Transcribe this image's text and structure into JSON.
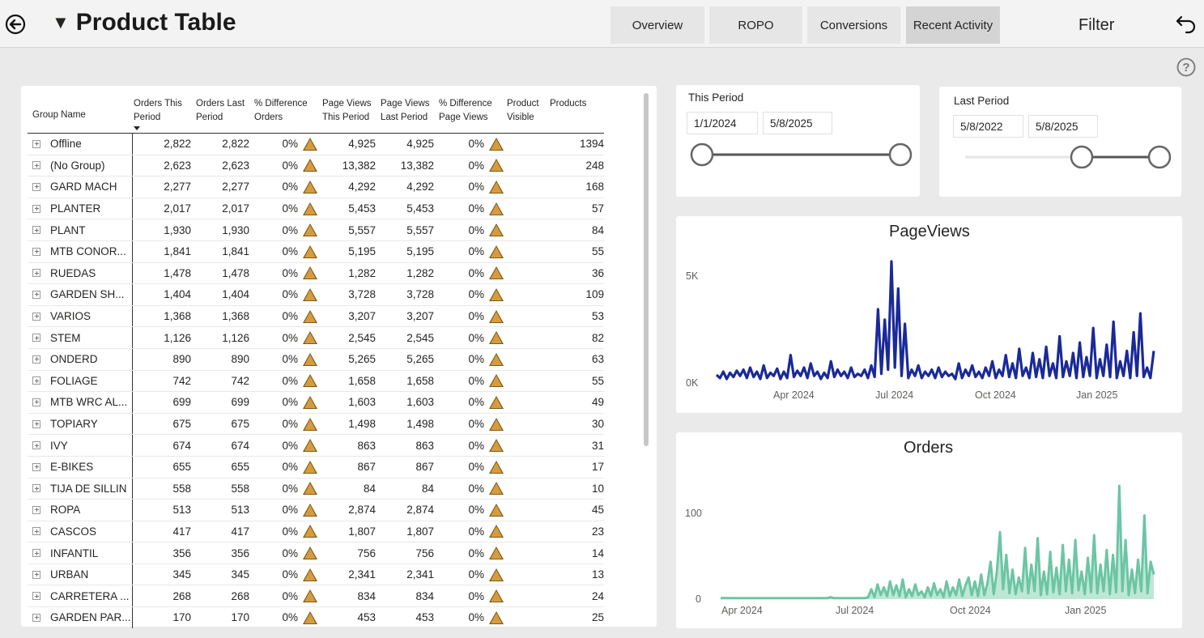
{
  "header": {
    "title": "Product Table",
    "filter_label": "Filter"
  },
  "nav": [
    {
      "label": "Overview",
      "active": false
    },
    {
      "label": "ROPO",
      "active": false
    },
    {
      "label": "Conversions",
      "active": false
    },
    {
      "label": "Recent Activity",
      "active": true
    }
  ],
  "icons": {
    "back": "back-circle-arrow-icon",
    "undo": "undo-icon",
    "help": "question-circle-icon",
    "expand": "plus-box-icon",
    "delta": "warning-triangle-icon"
  },
  "colors": {
    "pageviews_line": "#1a2a99",
    "orders_line": "#6cc5a4",
    "orders_fill": "#bfe7d6",
    "delta_triangle": "#d79b3f"
  },
  "table": {
    "columns": [
      "Group Name",
      "Orders This Period",
      "Orders Last Period",
      "% Difference Orders",
      "Page Views This Period",
      "Page Views Last Period",
      "% Difference Page Views",
      "Product Visible",
      "Products"
    ],
    "rows": [
      [
        "Offline",
        "2,822",
        "2,822",
        "0%",
        "4,925",
        "4,925",
        "0%",
        "1394"
      ],
      [
        "(No Group)",
        "2,623",
        "2,623",
        "0%",
        "13,382",
        "13,382",
        "0%",
        "248"
      ],
      [
        "GARD MACH",
        "2,277",
        "2,277",
        "0%",
        "4,292",
        "4,292",
        "0%",
        "168"
      ],
      [
        "PLANTER",
        "2,017",
        "2,017",
        "0%",
        "5,453",
        "5,453",
        "0%",
        "57"
      ],
      [
        "PLANT",
        "1,930",
        "1,930",
        "0%",
        "5,557",
        "5,557",
        "0%",
        "84"
      ],
      [
        "MTB CONOR...",
        "1,841",
        "1,841",
        "0%",
        "5,195",
        "5,195",
        "0%",
        "55"
      ],
      [
        "RUEDAS",
        "1,478",
        "1,478",
        "0%",
        "1,282",
        "1,282",
        "0%",
        "36"
      ],
      [
        "GARDEN SH...",
        "1,404",
        "1,404",
        "0%",
        "3,728",
        "3,728",
        "0%",
        "109"
      ],
      [
        "VARIOS",
        "1,368",
        "1,368",
        "0%",
        "3,207",
        "3,207",
        "0%",
        "53"
      ],
      [
        "STEM",
        "1,126",
        "1,126",
        "0%",
        "2,545",
        "2,545",
        "0%",
        "82"
      ],
      [
        "ONDERD",
        "890",
        "890",
        "0%",
        "5,265",
        "5,265",
        "0%",
        "63"
      ],
      [
        "FOLIAGE",
        "742",
        "742",
        "0%",
        "1,658",
        "1,658",
        "0%",
        "55"
      ],
      [
        "MTB WRC AL...",
        "699",
        "699",
        "0%",
        "1,603",
        "1,603",
        "0%",
        "49"
      ],
      [
        "TOPIARY",
        "675",
        "675",
        "0%",
        "1,498",
        "1,498",
        "0%",
        "30"
      ],
      [
        "IVY",
        "674",
        "674",
        "0%",
        "863",
        "863",
        "0%",
        "31"
      ],
      [
        "E-BIKES",
        "655",
        "655",
        "0%",
        "867",
        "867",
        "0%",
        "17"
      ],
      [
        "TIJA DE SILLIN",
        "558",
        "558",
        "0%",
        "84",
        "84",
        "0%",
        "10"
      ],
      [
        "ROPA",
        "513",
        "513",
        "0%",
        "2,874",
        "2,874",
        "0%",
        "45"
      ],
      [
        "CASCOS",
        "417",
        "417",
        "0%",
        "1,807",
        "1,807",
        "0%",
        "23"
      ],
      [
        "INFANTIL",
        "356",
        "356",
        "0%",
        "756",
        "756",
        "0%",
        "14"
      ],
      [
        "URBAN",
        "345",
        "345",
        "0%",
        "2,341",
        "2,341",
        "0%",
        "13"
      ],
      [
        "CARRETERA ...",
        "268",
        "268",
        "0%",
        "834",
        "834",
        "0%",
        "24"
      ],
      [
        "GARDEN PAR...",
        "170",
        "170",
        "0%",
        "453",
        "453",
        "0%",
        "25"
      ]
    ]
  },
  "this_period": {
    "label": "This Period",
    "start": "1/1/2024",
    "end": "5/8/2025",
    "range": [
      0,
      1
    ]
  },
  "last_period": {
    "label": "Last Period",
    "start": "5/8/2022",
    "end": "5/8/2025",
    "range": [
      0.6,
      1
    ]
  },
  "chart_data": [
    {
      "type": "line",
      "title": "PageViews",
      "y_ticks": [
        "5K",
        "0K"
      ],
      "x_ticks": [
        "Apr 2024",
        "Jul 2024",
        "Oct 2024",
        "Jan 2025"
      ],
      "ylim": [
        0,
        7000
      ],
      "series": [
        {
          "values": [
            350,
            200,
            500,
            150,
            450,
            250,
            550,
            300,
            600,
            200,
            700,
            250,
            500,
            150,
            800,
            200,
            450,
            300,
            650,
            150,
            500,
            200,
            1300,
            250,
            550,
            300,
            700,
            200,
            900,
            300,
            500,
            150,
            450,
            200,
            1000,
            250,
            600,
            300,
            500,
            200,
            700,
            250,
            400,
            300,
            600,
            200,
            800,
            250,
            3500,
            400,
            3000,
            600,
            5800,
            700,
            4500,
            300,
            2800,
            200,
            600,
            300,
            800,
            200,
            500,
            300,
            600,
            200,
            700,
            250,
            500,
            300,
            400,
            150,
            900,
            200,
            600,
            300,
            800,
            250,
            500,
            200,
            700,
            300,
            1000,
            200,
            600,
            300,
            1300,
            250,
            900,
            200,
            1600,
            300,
            700,
            200,
            1400,
            250,
            1100,
            200,
            1700,
            300,
            900,
            200,
            2200,
            250,
            1000,
            300,
            1400,
            200,
            1900,
            250,
            1200,
            300,
            2600,
            200,
            1100,
            300,
            1800,
            250,
            2900,
            200,
            1000,
            300,
            1500,
            200,
            2400,
            300,
            3300,
            250,
            700,
            200,
            1500
          ]
        }
      ]
    },
    {
      "type": "area",
      "title": "Orders",
      "y_ticks": [
        "100",
        "0"
      ],
      "x_ticks": [
        "Apr 2024",
        "Jul 2024",
        "Oct 2024",
        "Jan 2025"
      ],
      "ylim": [
        0,
        120
      ],
      "series": [
        {
          "values": [
            1,
            1,
            1,
            1,
            1,
            1,
            1,
            1,
            1,
            1,
            1,
            1,
            1,
            1,
            1,
            1,
            1,
            1,
            1,
            1,
            1,
            1,
            1,
            1,
            1,
            1,
            1,
            1,
            1,
            1,
            1,
            1,
            1,
            1,
            1,
            2,
            1,
            1,
            1,
            1,
            1,
            1,
            1,
            1,
            1,
            1,
            1,
            2,
            10,
            2,
            15,
            4,
            12,
            3,
            18,
            4,
            14,
            3,
            20,
            2,
            10,
            3,
            15,
            4,
            8,
            2,
            12,
            3,
            16,
            4,
            10,
            2,
            18,
            3,
            12,
            4,
            20,
            3,
            14,
            22,
            4,
            18,
            3,
            25,
            4,
            16,
            38,
            5,
            28,
            68,
            10,
            45,
            6,
            30,
            5,
            22,
            8,
            52,
            6,
            35,
            8,
            62,
            4,
            28,
            5,
            48,
            7,
            32,
            5,
            55,
            8,
            40,
            6,
            60,
            9,
            28,
            5,
            42,
            7,
            65,
            6,
            35,
            8,
            50,
            5,
            45,
            7,
            115,
            8,
            60,
            4,
            30,
            6,
            40,
            8,
            85,
            6,
            38,
            25
          ]
        }
      ]
    }
  ]
}
